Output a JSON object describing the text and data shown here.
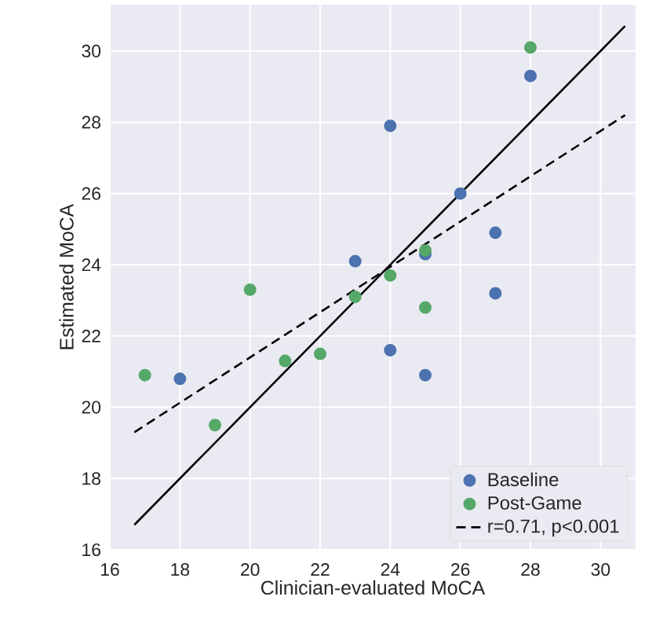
{
  "chart_data": {
    "type": "scatter",
    "xlabel": "Clinician-evaluated MoCA",
    "ylabel": "Estimated MoCA",
    "xlim": [
      16,
      31
    ],
    "ylim": [
      16,
      31.3
    ],
    "xticks": [
      16,
      18,
      20,
      22,
      24,
      26,
      28,
      30
    ],
    "yticks": [
      16,
      18,
      20,
      22,
      24,
      26,
      28,
      30
    ],
    "grid": true,
    "legend": "bottom right",
    "series": [
      {
        "name": "Baseline",
        "color": "#4c72b0",
        "marker": "circle",
        "x": [
          18,
          23,
          24,
          24,
          25,
          25,
          26,
          27,
          27,
          28
        ],
        "values": [
          20.8,
          24.1,
          27.9,
          21.6,
          24.3,
          20.9,
          26.0,
          24.9,
          23.2,
          29.3
        ]
      },
      {
        "name": "Post-Game",
        "color": "#55a868",
        "marker": "circle",
        "x": [
          17,
          19,
          20,
          21,
          22,
          23,
          24,
          25,
          25,
          28
        ],
        "values": [
          20.9,
          19.5,
          23.3,
          21.3,
          21.5,
          23.1,
          23.7,
          24.4,
          22.8,
          30.1
        ]
      },
      {
        "type": "line",
        "color": "#000000",
        "line_style": "solid",
        "marker": "none",
        "x": [
          16.7,
          30.7
        ],
        "values": [
          16.7,
          30.7
        ]
      },
      {
        "type": "line",
        "name": "r=0.71, p<0.001",
        "color": "#000000",
        "line_style": "dashed",
        "marker": "none",
        "x": [
          16.7,
          30.7
        ],
        "values": [
          19.3,
          28.2
        ]
      }
    ]
  }
}
